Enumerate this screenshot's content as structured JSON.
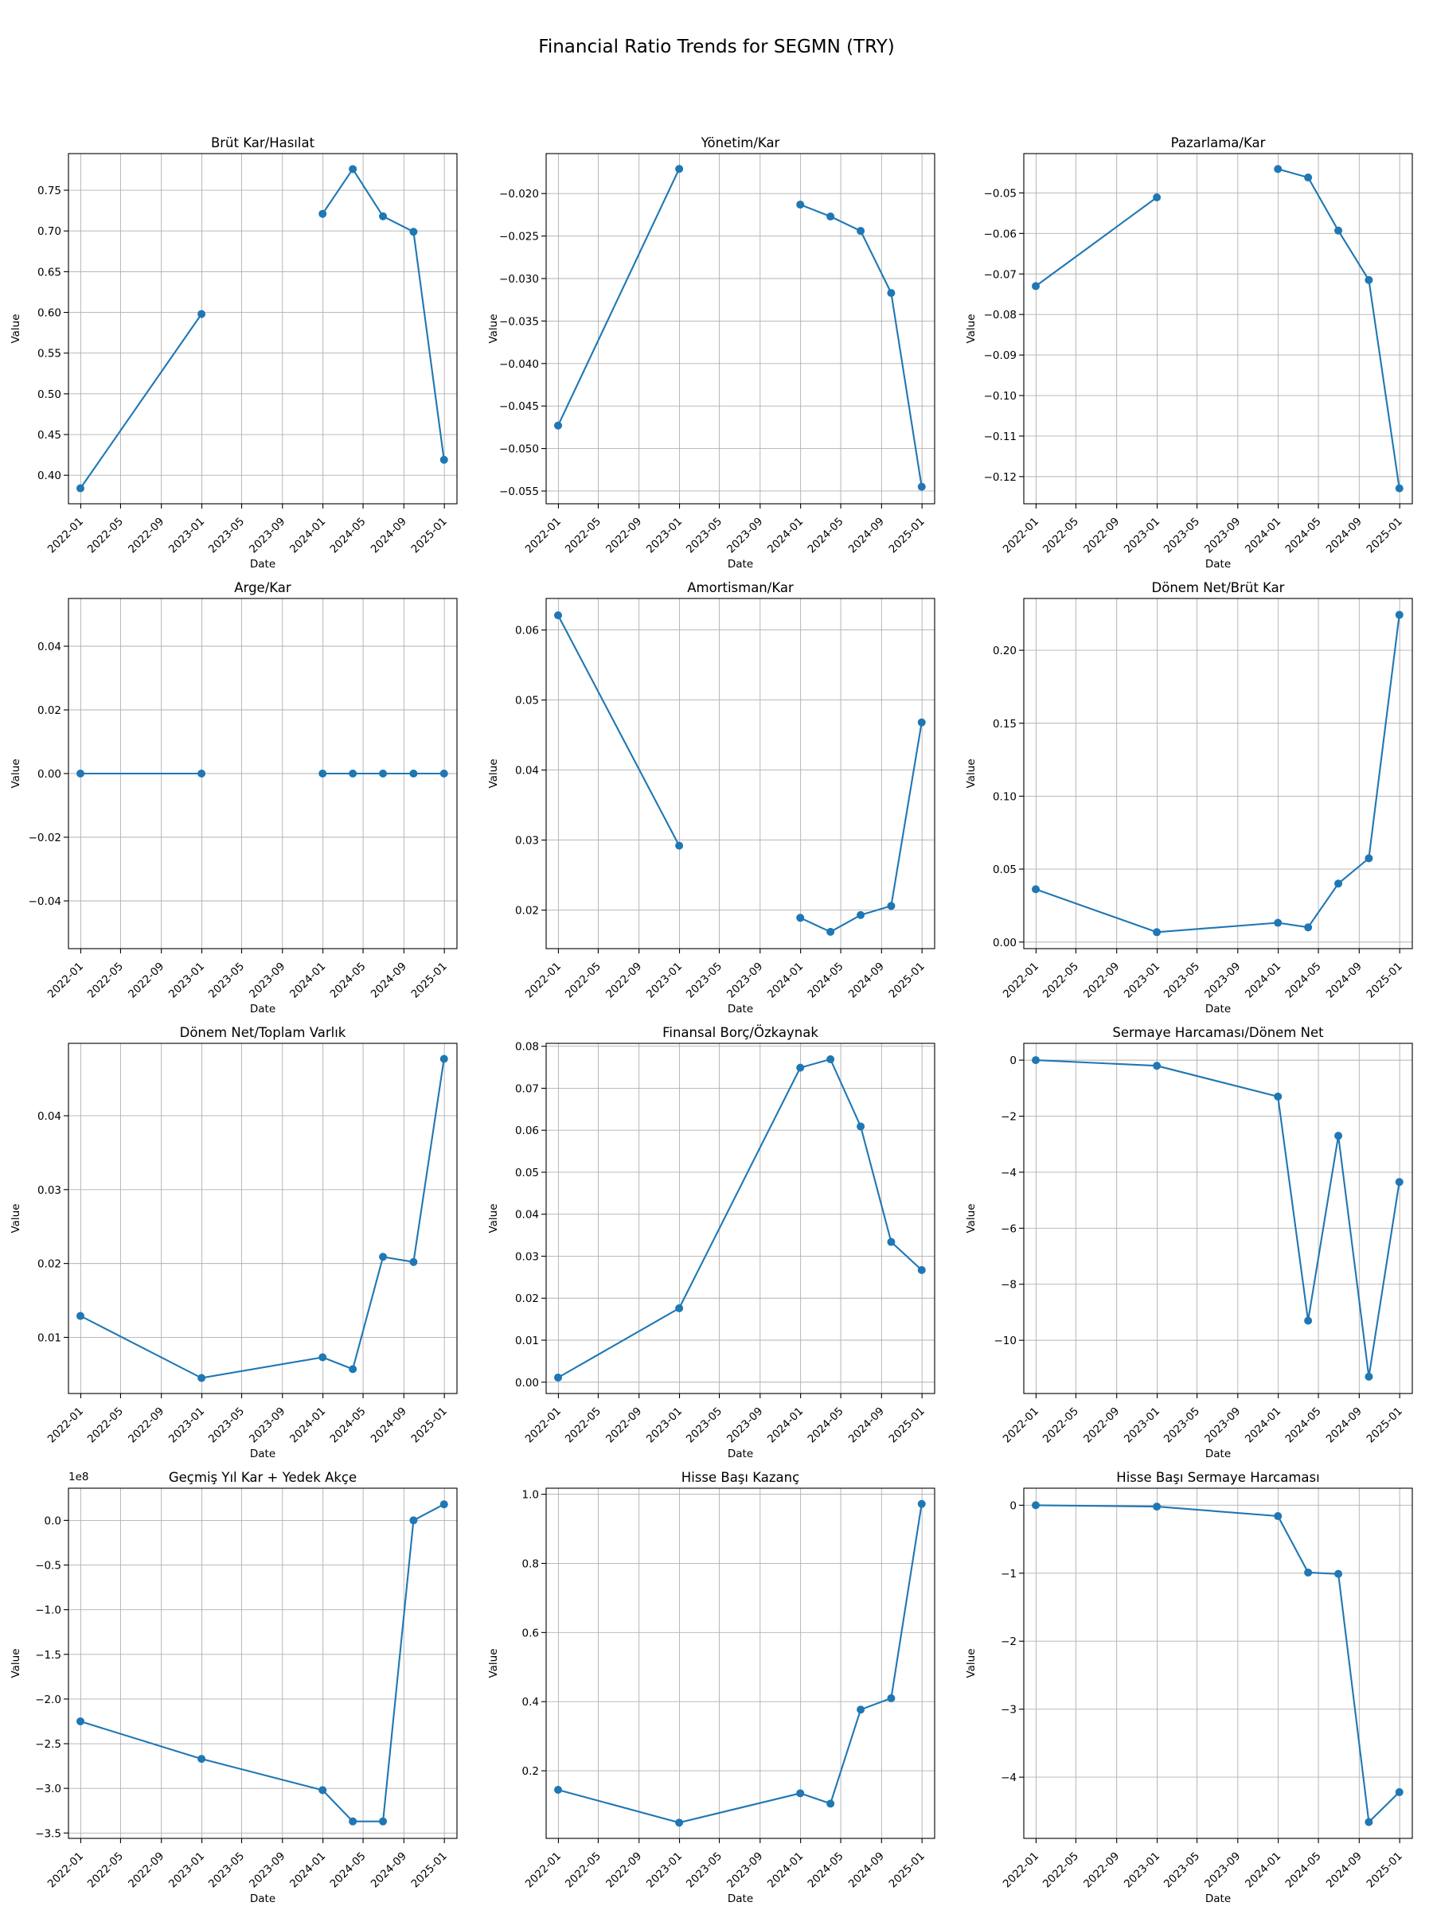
{
  "figure": {
    "title": "Financial Ratio Trends for SEGMN (TRY)"
  },
  "style": {
    "line_color": "#1f77b4",
    "grid_color": "#b0b0b0",
    "background": "#ffffff"
  },
  "chart_data": [
    {
      "type": "line",
      "title": "Brüt Kar/Hasılat",
      "xlabel": "Date",
      "ylabel": "Value",
      "grid": true,
      "legend": "none",
      "x_ticks": [
        "2022-01",
        "2022-05",
        "2022-09",
        "2023-01",
        "2023-05",
        "2023-09",
        "2024-01",
        "2024-05",
        "2024-09",
        "2025-01"
      ],
      "y_ticks": [
        "0.40",
        "0.45",
        "0.50",
        "0.55",
        "0.60",
        "0.65",
        "0.70",
        "0.75"
      ],
      "ylim": [
        0.365,
        0.795
      ],
      "segments": [
        [
          {
            "x": "2021-12-31",
            "y": 0.384
          },
          {
            "x": "2022-12-31",
            "y": 0.598
          }
        ],
        [
          {
            "x": "2023-12-31",
            "y": 0.721
          },
          {
            "x": "2024-03-31",
            "y": 0.776
          },
          {
            "x": "2024-06-30",
            "y": 0.718
          },
          {
            "x": "2024-09-30",
            "y": 0.699
          },
          {
            "x": "2024-12-31",
            "y": 0.419
          }
        ]
      ]
    },
    {
      "type": "line",
      "title": "Yönetim/Kar",
      "xlabel": "Date",
      "ylabel": "Value",
      "grid": true,
      "legend": "none",
      "x_ticks": [
        "2022-01",
        "2022-05",
        "2022-09",
        "2023-01",
        "2023-05",
        "2023-09",
        "2024-01",
        "2024-05",
        "2024-09",
        "2025-01"
      ],
      "y_ticks": [
        "−0.020",
        "−0.025",
        "−0.030",
        "−0.035",
        "−0.040",
        "−0.045",
        "−0.050",
        "−0.055"
      ],
      "ylim": [
        -0.0565,
        -0.0153
      ],
      "segments": [
        [
          {
            "x": "2021-12-31",
            "y": -0.0473
          },
          {
            "x": "2022-12-31",
            "y": -0.0171
          }
        ],
        [
          {
            "x": "2023-12-31",
            "y": -0.0213
          },
          {
            "x": "2024-03-31",
            "y": -0.0227
          },
          {
            "x": "2024-06-30",
            "y": -0.0244
          },
          {
            "x": "2024-09-30",
            "y": -0.0317
          },
          {
            "x": "2024-12-31",
            "y": -0.0545
          }
        ]
      ]
    },
    {
      "type": "line",
      "title": "Pazarlama/Kar",
      "xlabel": "Date",
      "ylabel": "Value",
      "grid": true,
      "legend": "none",
      "x_ticks": [
        "2022-01",
        "2022-05",
        "2022-09",
        "2023-01",
        "2023-05",
        "2023-09",
        "2024-01",
        "2024-05",
        "2024-09",
        "2025-01"
      ],
      "y_ticks": [
        "−0.05",
        "−0.06",
        "−0.07",
        "−0.08",
        "−0.09",
        "−0.10",
        "−0.11",
        "−0.12"
      ],
      "ylim": [
        -0.1267,
        -0.0403
      ],
      "segments": [
        [
          {
            "x": "2021-12-31",
            "y": -0.073
          },
          {
            "x": "2022-12-31",
            "y": -0.0511
          }
        ],
        [
          {
            "x": "2023-12-31",
            "y": -0.0441
          },
          {
            "x": "2024-03-31",
            "y": -0.0462
          },
          {
            "x": "2024-06-30",
            "y": -0.0593
          },
          {
            "x": "2024-09-30",
            "y": -0.0715
          },
          {
            "x": "2024-12-31",
            "y": -0.1229
          }
        ]
      ]
    },
    {
      "type": "line",
      "title": "Arge/Kar",
      "xlabel": "Date",
      "ylabel": "Value",
      "grid": true,
      "legend": "none",
      "x_ticks": [
        "2022-01",
        "2022-05",
        "2022-09",
        "2023-01",
        "2023-05",
        "2023-09",
        "2024-01",
        "2024-05",
        "2024-09",
        "2025-01"
      ],
      "y_ticks": [
        "0.04",
        "0.02",
        "0.00",
        "−0.02",
        "−0.04"
      ],
      "ylim": [
        -0.055,
        0.055
      ],
      "segments": [
        [
          {
            "x": "2021-12-31",
            "y": 0.0
          },
          {
            "x": "2022-12-31",
            "y": 0.0
          }
        ],
        [
          {
            "x": "2023-12-31",
            "y": 0.0
          },
          {
            "x": "2024-03-31",
            "y": 0.0
          },
          {
            "x": "2024-06-30",
            "y": 0.0
          },
          {
            "x": "2024-09-30",
            "y": 0.0
          },
          {
            "x": "2024-12-31",
            "y": 0.0
          }
        ]
      ]
    },
    {
      "type": "line",
      "title": "Amortisman/Kar",
      "xlabel": "Date",
      "ylabel": "Value",
      "grid": true,
      "legend": "none",
      "x_ticks": [
        "2022-01",
        "2022-05",
        "2022-09",
        "2023-01",
        "2023-05",
        "2023-09",
        "2024-01",
        "2024-05",
        "2024-09",
        "2025-01"
      ],
      "y_ticks": [
        "0.06",
        "0.05",
        "0.04",
        "0.03",
        "0.02"
      ],
      "ylim": [
        0.0145,
        0.0645
      ],
      "segments": [
        [
          {
            "x": "2021-12-31",
            "y": 0.0621
          },
          {
            "x": "2022-12-31",
            "y": 0.0292
          }
        ],
        [
          {
            "x": "2023-12-31",
            "y": 0.0189
          },
          {
            "x": "2024-03-31",
            "y": 0.0169
          },
          {
            "x": "2024-06-30",
            "y": 0.0193
          },
          {
            "x": "2024-09-30",
            "y": 0.0206
          },
          {
            "x": "2024-12-31",
            "y": 0.0468
          }
        ]
      ]
    },
    {
      "type": "line",
      "title": "Dönem Net/Brüt Kar",
      "xlabel": "Date",
      "ylabel": "Value",
      "grid": true,
      "legend": "none",
      "x_ticks": [
        "2022-01",
        "2022-05",
        "2022-09",
        "2023-01",
        "2023-05",
        "2023-09",
        "2024-01",
        "2024-05",
        "2024-09",
        "2025-01"
      ],
      "y_ticks": [
        "0.20",
        "0.15",
        "0.10",
        "0.05",
        "0.00"
      ],
      "ylim": [
        -0.0045,
        0.2355
      ],
      "segments": [
        [
          {
            "x": "2021-12-31",
            "y": 0.0362
          },
          {
            "x": "2022-12-31",
            "y": 0.0068
          },
          {
            "x": "2023-12-31",
            "y": 0.0132
          },
          {
            "x": "2024-03-31",
            "y": 0.0101
          },
          {
            "x": "2024-06-30",
            "y": 0.0401
          },
          {
            "x": "2024-09-30",
            "y": 0.0574
          },
          {
            "x": "2024-12-31",
            "y": 0.2243
          }
        ]
      ]
    },
    {
      "type": "line",
      "title": "Dönem Net/Toplam Varlık",
      "xlabel": "Date",
      "ylabel": "Value",
      "grid": true,
      "legend": "none",
      "x_ticks": [
        "2022-01",
        "2022-05",
        "2022-09",
        "2023-01",
        "2023-05",
        "2023-09",
        "2024-01",
        "2024-05",
        "2024-09",
        "2025-01"
      ],
      "y_ticks": [
        "0.04",
        "0.03",
        "0.02",
        "0.01"
      ],
      "ylim": [
        0.0024,
        0.0498
      ],
      "segments": [
        [
          {
            "x": "2021-12-31",
            "y": 0.0129
          },
          {
            "x": "2022-12-31",
            "y": 0.0045
          },
          {
            "x": "2023-12-31",
            "y": 0.0073
          },
          {
            "x": "2024-03-31",
            "y": 0.0057
          },
          {
            "x": "2024-06-30",
            "y": 0.0209
          },
          {
            "x": "2024-09-30",
            "y": 0.0202
          },
          {
            "x": "2024-12-31",
            "y": 0.0477
          }
        ]
      ]
    },
    {
      "type": "line",
      "title": "Finansal Borç/Özkaynak",
      "xlabel": "Date",
      "ylabel": "Value",
      "grid": true,
      "legend": "none",
      "x_ticks": [
        "2022-01",
        "2022-05",
        "2022-09",
        "2023-01",
        "2023-05",
        "2023-09",
        "2024-01",
        "2024-05",
        "2024-09",
        "2025-01"
      ],
      "y_ticks": [
        "0.08",
        "0.07",
        "0.06",
        "0.05",
        "0.04",
        "0.03",
        "0.02",
        "0.01",
        "0.00"
      ],
      "ylim": [
        -0.0027,
        0.0807
      ],
      "segments": [
        [
          {
            "x": "2021-12-31",
            "y": 0.0011
          },
          {
            "x": "2022-12-31",
            "y": 0.0176
          },
          {
            "x": "2023-12-31",
            "y": 0.0749
          },
          {
            "x": "2024-03-31",
            "y": 0.0769
          },
          {
            "x": "2024-06-30",
            "y": 0.0609
          },
          {
            "x": "2024-09-30",
            "y": 0.0334
          },
          {
            "x": "2024-12-31",
            "y": 0.0267
          }
        ]
      ]
    },
    {
      "type": "line",
      "title": "Sermaye Harcaması/Dönem Net",
      "xlabel": "Date",
      "ylabel": "Value",
      "grid": true,
      "legend": "none",
      "x_ticks": [
        "2022-01",
        "2022-05",
        "2022-09",
        "2023-01",
        "2023-05",
        "2023-09",
        "2024-01",
        "2024-05",
        "2024-09",
        "2025-01"
      ],
      "y_ticks": [
        "0",
        "−2",
        "−4",
        "−6",
        "−8",
        "−10"
      ],
      "ylim": [
        -11.9,
        0.6
      ],
      "segments": [
        [
          {
            "x": "2021-12-31",
            "y": 0.0
          },
          {
            "x": "2022-12-31",
            "y": -0.2
          },
          {
            "x": "2023-12-31",
            "y": -1.3
          },
          {
            "x": "2024-03-31",
            "y": -9.3
          },
          {
            "x": "2024-06-30",
            "y": -2.7
          },
          {
            "x": "2024-09-30",
            "y": -11.3
          },
          {
            "x": "2024-12-31",
            "y": -4.35
          }
        ]
      ]
    },
    {
      "type": "line",
      "title": "Geçmiş Yıl Kar + Yedek Akçe",
      "xlabel": "Date",
      "ylabel": "Value",
      "offset_text": "1e8",
      "grid": true,
      "legend": "none",
      "x_ticks": [
        "2022-01",
        "2022-05",
        "2022-09",
        "2023-01",
        "2023-05",
        "2023-09",
        "2024-01",
        "2024-05",
        "2024-09",
        "2025-01"
      ],
      "y_ticks": [
        "0.0",
        "−0.5",
        "−1.0",
        "−1.5",
        "−2.0",
        "−2.5",
        "−3.0",
        "−3.5"
      ],
      "ylim": [
        -3.56,
        0.36
      ],
      "segments": [
        [
          {
            "x": "2021-12-31",
            "y": -2.25
          },
          {
            "x": "2022-12-31",
            "y": -2.67
          },
          {
            "x": "2023-12-31",
            "y": -3.02
          },
          {
            "x": "2024-03-31",
            "y": -3.37
          },
          {
            "x": "2024-06-30",
            "y": -3.37
          },
          {
            "x": "2024-09-30",
            "y": 0.0
          },
          {
            "x": "2024-12-31",
            "y": 0.18
          }
        ]
      ]
    },
    {
      "type": "line",
      "title": "Hisse Başı Kazanç",
      "xlabel": "Date",
      "ylabel": "Value",
      "grid": true,
      "legend": "none",
      "x_ticks": [
        "2022-01",
        "2022-05",
        "2022-09",
        "2023-01",
        "2023-05",
        "2023-09",
        "2024-01",
        "2024-05",
        "2024-09",
        "2025-01"
      ],
      "y_ticks": [
        "1.0",
        "0.8",
        "0.6",
        "0.4",
        "0.2"
      ],
      "ylim": [
        0.0045,
        1.0175
      ],
      "segments": [
        [
          {
            "x": "2021-12-31",
            "y": 0.145
          },
          {
            "x": "2022-12-31",
            "y": 0.05
          },
          {
            "x": "2023-12-31",
            "y": 0.135
          },
          {
            "x": "2024-03-31",
            "y": 0.105
          },
          {
            "x": "2024-06-30",
            "y": 0.377
          },
          {
            "x": "2024-09-30",
            "y": 0.41
          },
          {
            "x": "2024-12-31",
            "y": 0.972
          }
        ]
      ]
    },
    {
      "type": "line",
      "title": "Hisse Başı Sermaye Harcaması",
      "xlabel": "Date",
      "ylabel": "Value",
      "grid": true,
      "legend": "none",
      "x_ticks": [
        "2022-01",
        "2022-05",
        "2022-09",
        "2023-01",
        "2023-05",
        "2023-09",
        "2024-01",
        "2024-05",
        "2024-09",
        "2025-01"
      ],
      "y_ticks": [
        "0",
        "−1",
        "−2",
        "−3",
        "−4"
      ],
      "ylim": [
        -4.9,
        0.25
      ],
      "segments": [
        [
          {
            "x": "2021-12-31",
            "y": 0.0
          },
          {
            "x": "2022-12-31",
            "y": -0.02
          },
          {
            "x": "2023-12-31",
            "y": -0.16
          },
          {
            "x": "2024-03-31",
            "y": -0.99
          },
          {
            "x": "2024-06-30",
            "y": -1.01
          },
          {
            "x": "2024-09-30",
            "y": -4.66
          },
          {
            "x": "2024-12-31",
            "y": -4.22
          }
        ]
      ]
    }
  ]
}
